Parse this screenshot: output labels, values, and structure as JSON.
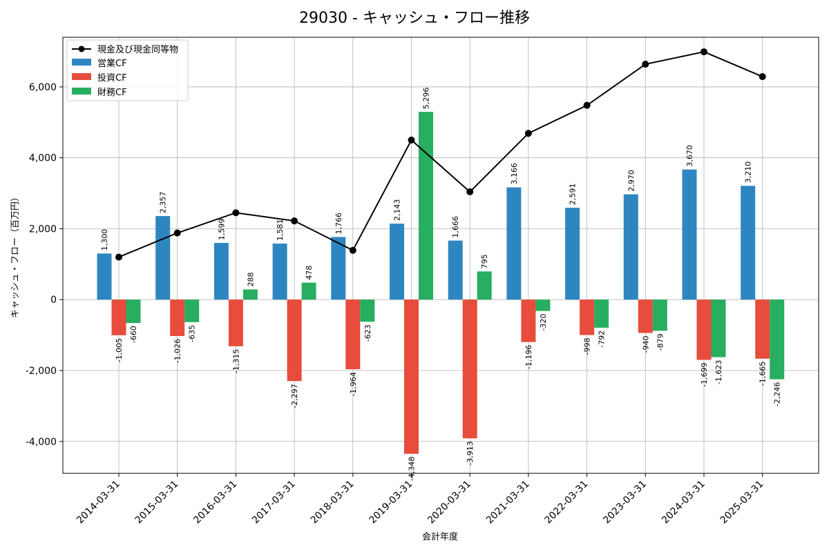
{
  "chart_data": {
    "type": "bar",
    "title": "29030 - キャッシュ・フロー推移",
    "xlabel": "会計年度",
    "ylabel": "キャッシュ・フロー（百万円）",
    "ylim": [
      -4900,
      7400
    ],
    "yticks": [
      -4000,
      -2000,
      0,
      2000,
      4000,
      6000
    ],
    "ytick_labels": [
      "-4,000",
      "-2,000",
      "0",
      "2,000",
      "4,000",
      "6,000"
    ],
    "grid": true,
    "legend_position": "top-left",
    "categories": [
      "2014-03-31",
      "2015-03-31",
      "2016-03-31",
      "2017-03-31",
      "2018-03-31",
      "2019-03-31",
      "2020-03-31",
      "2021-03-31",
      "2022-03-31",
      "2023-03-31",
      "2024-03-31",
      "2025-03-31"
    ],
    "line_series": {
      "name": "現金及び現金同等物",
      "color": "#000000",
      "values": [
        1200,
        1880,
        2450,
        2220,
        1390,
        4500,
        3040,
        4690,
        5480,
        6640,
        6990,
        6290
      ]
    },
    "series": [
      {
        "name": "営業CF",
        "color": "#2e86c1",
        "values": [
          1300,
          2357,
          1599,
          1581,
          1766,
          2143,
          1666,
          3166,
          2591,
          2970,
          3670,
          3210
        ],
        "labels": [
          "1,300",
          "2,357",
          "1,599",
          "1,581",
          "1,766",
          "2,143",
          "1,666",
          "3,166",
          "2,591",
          "2,970",
          "3,670",
          "3,210"
        ]
      },
      {
        "name": "投資CF",
        "color": "#e74c3c",
        "values": [
          -1005,
          -1026,
          -1315,
          -2297,
          -1964,
          -4348,
          -3913,
          -1196,
          -998,
          -940,
          -1699,
          -1665
        ],
        "labels": [
          "-1,005",
          "-1,026",
          "-1,315",
          "-2,297",
          "-1,964",
          "-4,348",
          "-3,913",
          "-1,196",
          "-998",
          "-940",
          "-1,699",
          "-1,665"
        ]
      },
      {
        "name": "財務CF",
        "color": "#27ae60",
        "values": [
          -660,
          -635,
          288,
          478,
          -623,
          5296,
          795,
          -320,
          -792,
          -879,
          -1623,
          -2246
        ],
        "labels": [
          "-660",
          "-635",
          "288",
          "478",
          "-623",
          "5,296",
          "795",
          "-320",
          "-792",
          "-879",
          "-1,623",
          "-2,246"
        ]
      }
    ]
  }
}
